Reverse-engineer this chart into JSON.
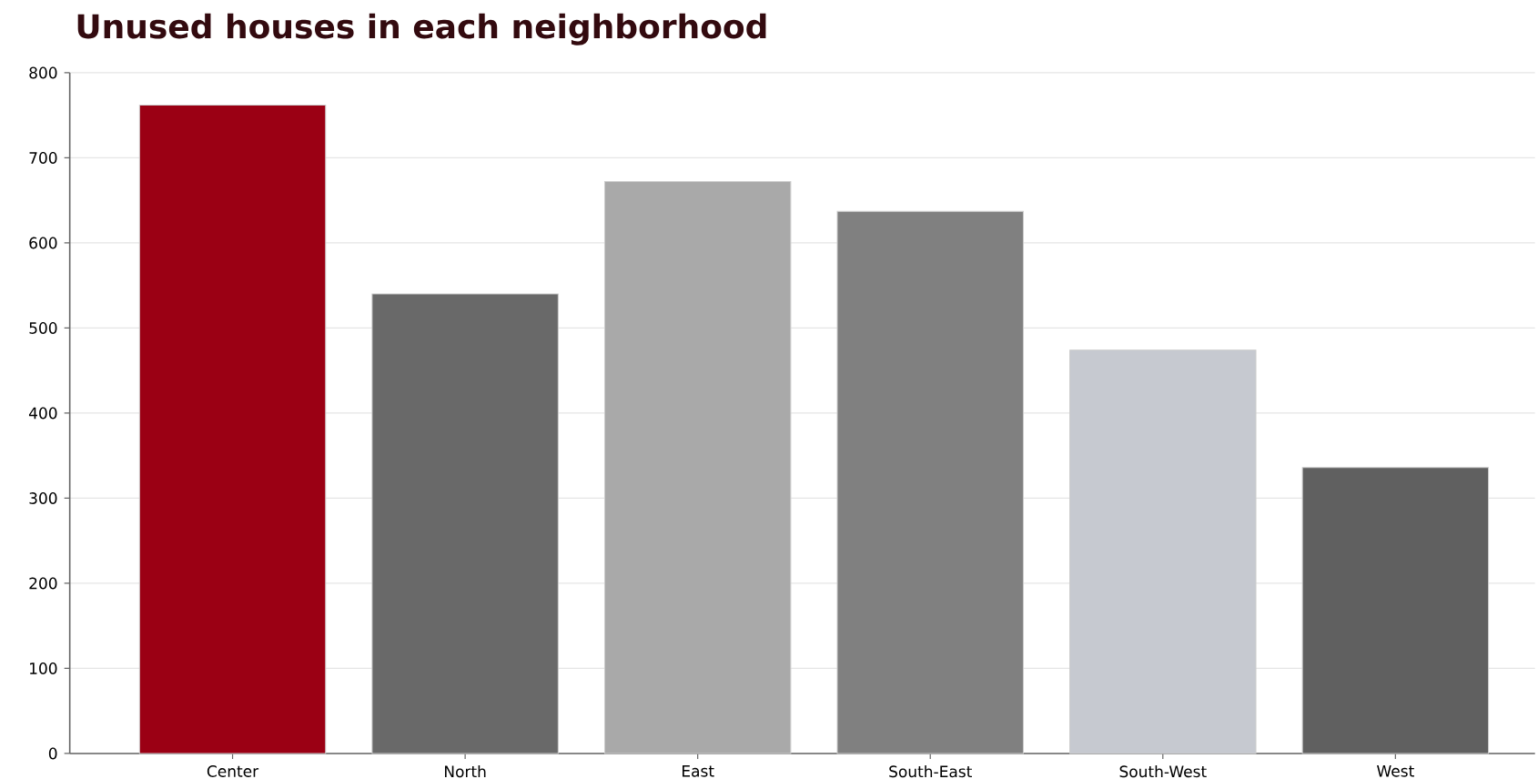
{
  "chart_data": {
    "type": "bar",
    "title": "Unused houses in each neighborhood",
    "categories": [
      "Center",
      "North",
      "East",
      "South-East",
      "South-West",
      "West"
    ],
    "values": [
      762,
      540,
      672,
      637,
      474,
      336
    ],
    "colors": [
      "#9b0014",
      "#696969",
      "#a9a9a9",
      "#808080",
      "#c6c9d0",
      "#606060"
    ],
    "ylim": [
      0,
      800
    ],
    "yticks": [
      0,
      100,
      200,
      300,
      400,
      500,
      600,
      700,
      800
    ],
    "grid": "y"
  }
}
